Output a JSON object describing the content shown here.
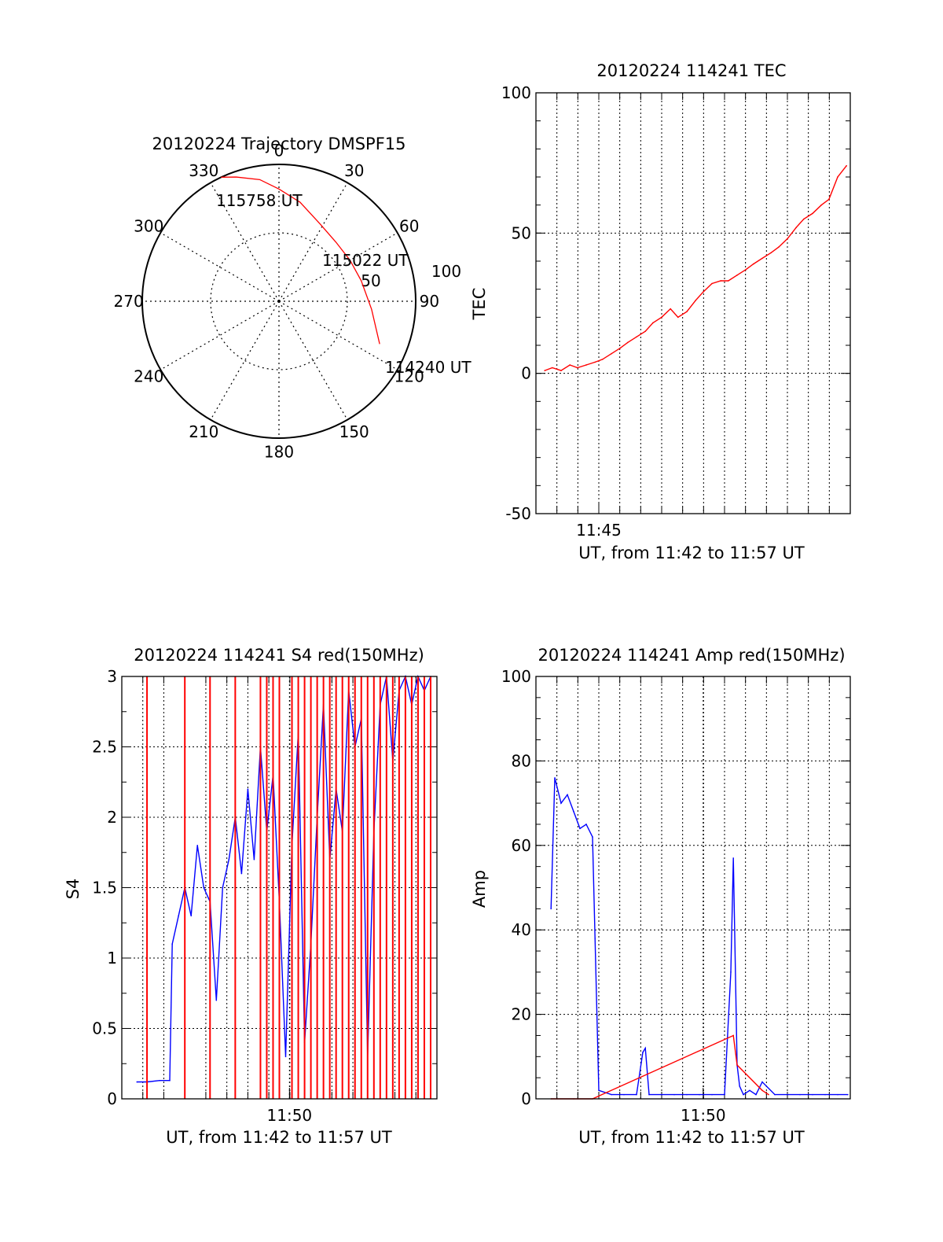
{
  "colors": {
    "red": "#ff0000",
    "blue": "#0000ff",
    "axis": "#000000",
    "grid": "#000000"
  },
  "chart_data": [
    {
      "type": "polar",
      "title": "20120224 Trajectory DMSPF15",
      "angle_labels": [
        "0",
        "30",
        "60",
        "90",
        "120",
        "150",
        "180",
        "210",
        "240",
        "270",
        "300",
        "330"
      ],
      "radius_labels": [
        "50",
        "100"
      ],
      "radial_range": [
        0,
        100
      ],
      "grid": true,
      "trajectory": {
        "color": "red",
        "points": [
          {
            "az": 113,
            "r": 80
          },
          {
            "az": 95,
            "r": 68
          },
          {
            "az": 76,
            "r": 62
          },
          {
            "az": 60,
            "r": 60
          },
          {
            "az": 44,
            "r": 60
          },
          {
            "az": 28,
            "r": 64
          },
          {
            "az": 12,
            "r": 74
          },
          {
            "az": 0,
            "r": 82
          },
          {
            "az": -9,
            "r": 90
          },
          {
            "az": -19,
            "r": 96
          },
          {
            "az": -25,
            "r": 100
          }
        ]
      },
      "annotations": [
        {
          "text": "115758 UT",
          "az": -19,
          "r": 87
        },
        {
          "text": "115022 UT",
          "az": 60,
          "r": 64
        },
        {
          "text": "114240 UT",
          "az": 113,
          "r": 108
        }
      ]
    },
    {
      "type": "line",
      "title": "20120224 114241 TEC",
      "xlabel": "UT, from 11:42 to 11:57 UT",
      "ylabel": "TEC",
      "xlim": [
        11.7,
        11.95
      ],
      "ylim": [
        -50,
        100
      ],
      "xticks": [
        {
          "x": 11.75,
          "label": "11:45"
        }
      ],
      "yticks": [
        -50,
        0,
        50,
        100
      ],
      "grid": true,
      "series": [
        {
          "color": "red",
          "x": [
            11.707,
            11.713,
            11.72,
            11.727,
            11.733,
            11.74,
            11.747,
            11.753,
            11.76,
            11.767,
            11.773,
            11.78,
            11.787,
            11.793,
            11.8,
            11.807,
            11.813,
            11.82,
            11.827,
            11.833,
            11.84,
            11.847,
            11.853,
            11.86,
            11.867,
            11.873,
            11.88,
            11.887,
            11.893,
            11.9,
            11.907,
            11.913,
            11.92,
            11.927,
            11.933,
            11.94,
            11.947
          ],
          "y": [
            1,
            2,
            1,
            3,
            2,
            3,
            4,
            5,
            7,
            9,
            11,
            13,
            15,
            18,
            20,
            23,
            20,
            22,
            26,
            29,
            32,
            33,
            33,
            35,
            37,
            39,
            41,
            43,
            45,
            48,
            52,
            55,
            57,
            60,
            62,
            70,
            74
          ]
        }
      ]
    },
    {
      "type": "line",
      "title": "20120224 114241 S4 red(150MHz)",
      "xlabel": "UT, from 11:42 to 11:57 UT",
      "ylabel": "S4",
      "xlim": [
        11.7,
        11.95
      ],
      "ylim": [
        0,
        3
      ],
      "xticks": [
        {
          "x": 11.833,
          "label": "11:50"
        }
      ],
      "yticks": [
        0,
        0.5,
        1,
        1.5,
        2,
        2.5,
        3
      ],
      "grid": true,
      "series": [
        {
          "color": "blue",
          "x": [
            11.712,
            11.72,
            11.73,
            11.738,
            11.74,
            11.745,
            11.75,
            11.755,
            11.76,
            11.765,
            11.77,
            11.775,
            11.78,
            11.785,
            11.79,
            11.795,
            11.8,
            11.805,
            11.81,
            11.815,
            11.82,
            11.825,
            11.83,
            11.835,
            11.84,
            11.845,
            11.85,
            11.855,
            11.86,
            11.865,
            11.87,
            11.875,
            11.88,
            11.885,
            11.89,
            11.895,
            11.9,
            11.905,
            11.91,
            11.915,
            11.92,
            11.925,
            11.93,
            11.935,
            11.94,
            11.945
          ],
          "y": [
            0.12,
            0.12,
            0.13,
            0.13,
            1.1,
            1.3,
            1.5,
            1.3,
            1.8,
            1.5,
            1.4,
            0.7,
            1.5,
            1.7,
            2.0,
            1.6,
            2.2,
            1.7,
            2.5,
            1.9,
            2.3,
            1.4,
            0.3,
            1.8,
            2.6,
            0.4,
            1.1,
            2.0,
            2.8,
            1.7,
            2.2,
            1.9,
            2.9,
            2.5,
            2.7,
            0.3,
            1.9,
            2.8,
            3.0,
            2.4,
            2.9,
            3.0,
            2.8,
            3.0,
            2.9,
            3.0
          ]
        },
        {
          "color": "red",
          "x": [
            11.72,
            11.75,
            11.77,
            11.79,
            11.81,
            11.815,
            11.82,
            11.825,
            11.835,
            11.84,
            11.845,
            11.85,
            11.855,
            11.86,
            11.865,
            11.87,
            11.875,
            11.88,
            11.885,
            11.89,
            11.895,
            11.9,
            11.905,
            11.91,
            11.915,
            11.92,
            11.925,
            11.93,
            11.935,
            11.94,
            11.945
          ],
          "y": [
            3.0,
            3.0,
            3.0,
            3.0,
            3.0,
            3.0,
            3.0,
            3.0,
            3.0,
            3.0,
            3.0,
            3.0,
            3.0,
            3.0,
            3.0,
            3.0,
            3.0,
            3.0,
            3.0,
            3.0,
            3.0,
            3.0,
            3.0,
            3.0,
            3.0,
            3.0,
            3.0,
            3.0,
            3.0,
            3.0,
            3.0
          ]
        }
      ]
    },
    {
      "type": "line",
      "title": "20120224 114241 Amp red(150MHz)",
      "xlabel": "UT, from 11:42 to 11:57 UT",
      "ylabel": "Amp",
      "xlim": [
        11.7,
        11.95
      ],
      "ylim": [
        0,
        100
      ],
      "xticks": [
        {
          "x": 11.833,
          "label": "11:50"
        }
      ],
      "yticks": [
        0,
        20,
        40,
        60,
        80,
        100
      ],
      "grid": true,
      "series": [
        {
          "color": "blue",
          "x": [
            11.712,
            11.715,
            11.72,
            11.725,
            11.73,
            11.735,
            11.74,
            11.745,
            11.747,
            11.75,
            11.76,
            11.77,
            11.78,
            11.785,
            11.787,
            11.79,
            11.8,
            11.81,
            11.82,
            11.83,
            11.84,
            11.85,
            11.855,
            11.857,
            11.86,
            11.862,
            11.865,
            11.87,
            11.875,
            11.88,
            11.89,
            11.9,
            11.91,
            11.92,
            11.93,
            11.94,
            11.948
          ],
          "y": [
            45,
            76,
            70,
            72,
            68,
            64,
            65,
            62,
            38,
            2,
            1,
            1,
            1,
            11,
            12,
            1,
            1,
            1,
            1,
            1,
            1,
            1,
            30,
            57,
            8,
            3,
            1,
            2,
            1,
            4,
            1,
            1,
            1,
            1,
            1,
            1,
            1
          ]
        },
        {
          "color": "red",
          "x": [
            11.712,
            11.73,
            11.745,
            11.857,
            11.86,
            11.88,
            11.885
          ],
          "y": [
            0,
            0,
            0,
            15,
            8,
            2,
            1
          ]
        }
      ]
    }
  ]
}
